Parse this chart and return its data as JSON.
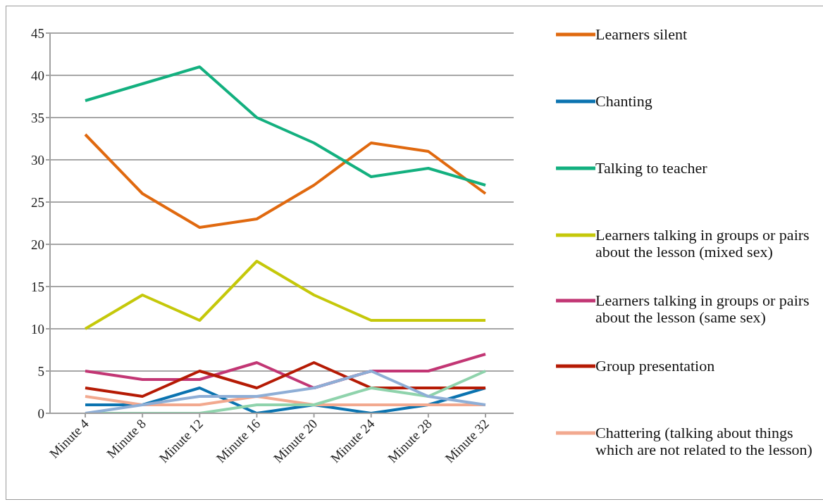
{
  "chart_data": {
    "type": "line",
    "categories": [
      "Minute 4",
      "Minute 8",
      "Minute 12",
      "Minute 16",
      "Minute 20",
      "Minute 24",
      "Minute 28",
      "Minute 32"
    ],
    "series": [
      {
        "name": "Learners silent",
        "color": "#e0690f",
        "values": [
          33,
          26,
          22,
          23,
          27,
          32,
          31,
          26
        ]
      },
      {
        "name": "Chanting",
        "color": "#0a73b0",
        "values": [
          1,
          1,
          3,
          0,
          1,
          0,
          1,
          3
        ]
      },
      {
        "name": "Talking to teacher",
        "color": "#13b07f",
        "values": [
          37,
          39,
          41,
          35,
          32,
          28,
          29,
          27
        ]
      },
      {
        "name": "Learners talking in groups or pairs about the lesson (mixed sex)",
        "color": "#c5c80a",
        "values": [
          10,
          14,
          11,
          18,
          14,
          11,
          11,
          11
        ]
      },
      {
        "name": "Learners talking in groups or pairs about the lesson (same sex)",
        "color": "#c23674",
        "values": [
          5,
          4,
          4,
          6,
          3,
          5,
          5,
          7
        ]
      },
      {
        "name": "Group presentation",
        "color": "#b51a04",
        "values": [
          3,
          2,
          5,
          3,
          6,
          3,
          3,
          3
        ]
      },
      {
        "name": "Chattering (talking about things which are not related to the lesson)",
        "color": "#f2a98f",
        "values": [
          2,
          1,
          1,
          2,
          1,
          1,
          1,
          1
        ]
      },
      {
        "color": "#8fd3ac",
        "values": [
          0,
          0,
          0,
          1,
          1,
          3,
          2,
          5
        ]
      },
      {
        "color": "#8eaed6",
        "values": [
          0,
          1,
          2,
          2,
          3,
          5,
          2,
          1
        ]
      }
    ],
    "ylim": [
      0,
      45
    ],
    "yticks": [
      0,
      5,
      10,
      15,
      20,
      25,
      30,
      35,
      40,
      45
    ],
    "grid": "y",
    "legend": "right",
    "marker": "none",
    "line_style": "solid"
  }
}
